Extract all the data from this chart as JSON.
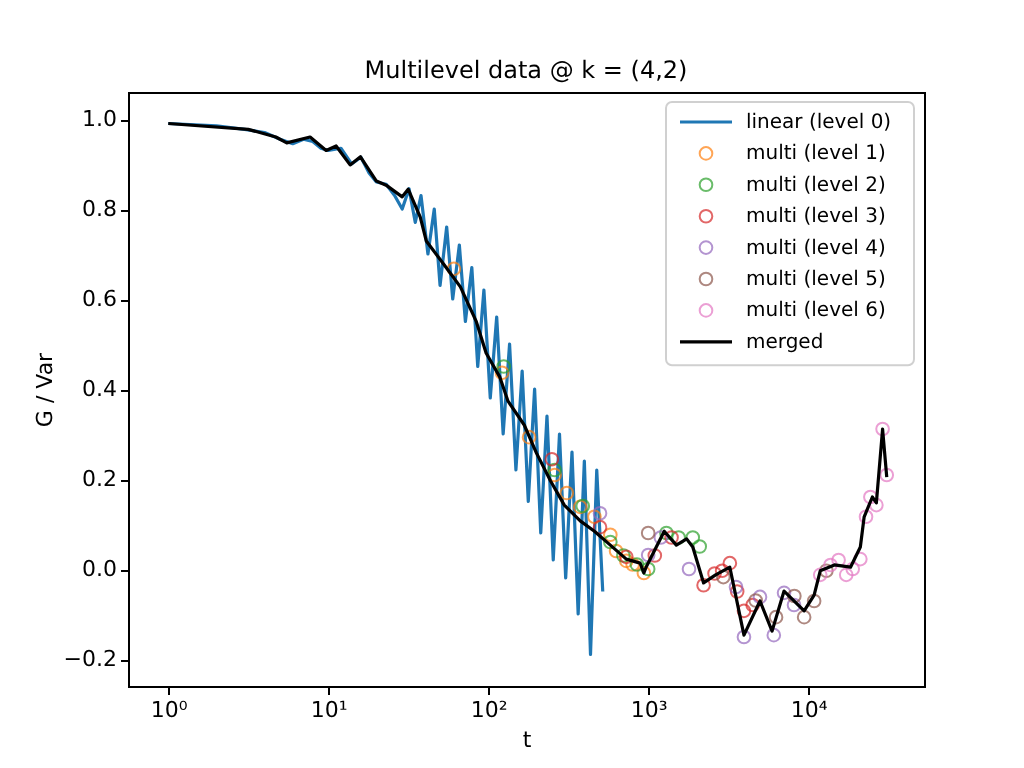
{
  "chart_data": {
    "type": "line",
    "title": "Multilevel data @ k = (4,2)",
    "xlabel": "t",
    "ylabel": "G / Var",
    "log": "x",
    "xlim": [
      0.56,
      53000
    ],
    "ylim": [
      -0.26,
      1.06
    ],
    "xticks": [
      {
        "value": 1,
        "label": "10⁰"
      },
      {
        "value": 10,
        "label": "10¹"
      },
      {
        "value": 100,
        "label": "10²"
      },
      {
        "value": 1000,
        "label": "10³"
      },
      {
        "value": 10000,
        "label": "10⁴"
      }
    ],
    "yticks": [
      -0.2,
      {
        "value": 0,
        "label": "0.0"
      },
      0.2,
      0.4,
      0.6,
      0.8,
      {
        "value": 1,
        "label": "1.0"
      }
    ],
    "grid": false,
    "legend": "top right",
    "series": [
      {
        "name": "linear (level 0)",
        "marker": "none",
        "color": "#1f77b4",
        "x": [
          1,
          2,
          3,
          4,
          5,
          6,
          7,
          8,
          9,
          10,
          12,
          14,
          16,
          18,
          20,
          23,
          26,
          29,
          32,
          35,
          38,
          42,
          46,
          50,
          55,
          60,
          66,
          72,
          79,
          86,
          94,
          103,
          113,
          124,
          136,
          149,
          163,
          178,
          195,
          213,
          233,
          255,
          279,
          305,
          334,
          365,
          399,
          436,
          477,
          520
        ],
        "values": [
          0.99,
          0.985,
          0.977,
          0.97,
          0.955,
          0.945,
          0.955,
          0.95,
          0.935,
          0.93,
          0.935,
          0.9,
          0.915,
          0.88,
          0.86,
          0.855,
          0.83,
          0.8,
          0.845,
          0.77,
          0.83,
          0.7,
          0.8,
          0.63,
          0.76,
          0.6,
          0.72,
          0.55,
          0.67,
          0.45,
          0.62,
          0.38,
          0.56,
          0.3,
          0.5,
          0.22,
          0.44,
          0.15,
          0.4,
          0.08,
          0.34,
          0.02,
          0.3,
          -0.02,
          0.26,
          -0.1,
          0.24,
          -0.19,
          0.22,
          -0.05
        ]
      },
      {
        "name": "multi  (level 1)",
        "type": "scatter",
        "marker": "circle",
        "color": "#ff7f0e",
        "x": [
          61,
          122,
          180,
          260,
          310,
          376,
          461,
          580,
          630,
          730,
          800,
          940
        ],
        "values": [
          0.667,
          0.436,
          0.293,
          0.209,
          0.169,
          0.138,
          0.116,
          0.076,
          0.04,
          0.018,
          0.01,
          -0.009
        ]
      },
      {
        "name": "multi  (level 2)",
        "type": "scatter",
        "marker": "circle",
        "color": "#2ca02c",
        "x": [
          125,
          260,
          390,
          580,
          700,
          850,
          1000,
          1300,
          1550,
          1900,
          2100
        ],
        "values": [
          0.45,
          0.22,
          0.14,
          0.06,
          0.03,
          0.01,
          0.0,
          0.08,
          0.07,
          0.07,
          0.05
        ]
      },
      {
        "name": "multi  (level 3)",
        "type": "scatter",
        "marker": "circle",
        "color": "#d62728",
        "x": [
          250,
          500,
          730,
          1100,
          1400,
          2220,
          2600,
          2900,
          3240,
          3600,
          3970,
          4500
        ],
        "values": [
          0.244,
          0.093,
          0.027,
          0.03,
          0.07,
          -0.036,
          -0.01,
          -0.004,
          0.013,
          -0.05,
          -0.093,
          -0.08
        ]
      },
      {
        "name": "multi  (level 4)",
        "type": "scatter",
        "marker": "circle",
        "color": "#9467bd",
        "x": [
          500,
          1000,
          1200,
          1800,
          3540,
          3970,
          5000,
          6100,
          7070,
          8160
        ],
        "values": [
          0.124,
          0.031,
          0.07,
          0.0,
          -0.04,
          -0.151,
          -0.062,
          -0.147,
          -0.053,
          -0.08
        ]
      },
      {
        "name": "multi  (level 5)",
        "type": "scatter",
        "marker": "circle",
        "color": "#8c564b",
        "x": [
          1000,
          2950,
          4700,
          6300,
          8200,
          9440,
          10900,
          13000
        ],
        "values": [
          0.08,
          -0.018,
          -0.07,
          -0.107,
          -0.06,
          -0.107,
          -0.071,
          -0.004
        ]
      },
      {
        "name": "multi  (level 6)",
        "type": "scatter",
        "marker": "circle",
        "color": "#e377c2",
        "x": [
          11900,
          13800,
          15500,
          17300,
          19000,
          21200,
          23000,
          24500,
          26700,
          29200,
          31000
        ],
        "values": [
          -0.013,
          0.009,
          0.02,
          -0.013,
          0.0,
          0.022,
          0.116,
          0.16,
          0.142,
          0.311,
          0.209
        ]
      },
      {
        "name": "merged",
        "marker": "none",
        "color": "#000000",
        "x": [
          1,
          3.16,
          4.7,
          5.5,
          7.7,
          9.7,
          11.2,
          13.7,
          15.9,
          20,
          23,
          29,
          31.6,
          37.6,
          41,
          53,
          67,
          84,
          97,
          118,
          133,
          168,
          200,
          245,
          299,
          376,
          461,
          580,
          730,
          890,
          940,
          970,
          1260,
          1500,
          1740,
          1900,
          2220,
          2640,
          3240,
          3540,
          3970,
          5000,
          5950,
          7070,
          8160,
          9440,
          10900,
          11900,
          14600,
          18400,
          21200,
          22400,
          25200,
          26700,
          29200,
          31000
        ],
        "values": [
          0.99,
          0.977,
          0.96,
          0.947,
          0.96,
          0.93,
          0.94,
          0.898,
          0.916,
          0.862,
          0.853,
          0.827,
          0.844,
          0.782,
          0.729,
          0.676,
          0.627,
          0.551,
          0.48,
          0.427,
          0.373,
          0.32,
          0.258,
          0.196,
          0.142,
          0.107,
          0.084,
          0.053,
          0.022,
          0.013,
          -0.009,
          0.004,
          0.084,
          0.053,
          0.067,
          0.049,
          -0.031,
          -0.013,
          0.004,
          -0.062,
          -0.147,
          -0.071,
          -0.138,
          -0.049,
          -0.071,
          -0.093,
          -0.058,
          -0.004,
          0.009,
          0.004,
          0.049,
          0.116,
          0.16,
          0.147,
          0.311,
          0.204
        ]
      }
    ]
  }
}
